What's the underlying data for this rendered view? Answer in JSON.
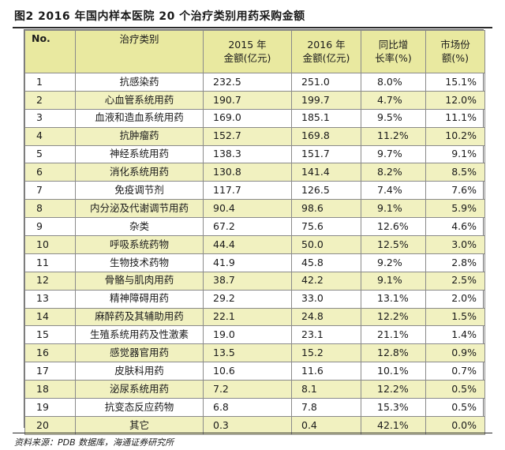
{
  "figure": {
    "title": "图2  2016 年国内样本医院 20 个治疗类别用药采购金额",
    "source": "资料来源：PDB 数据库，海通证券研究所"
  },
  "table": {
    "headers": {
      "no": "No.",
      "category": "治疗类别",
      "y2015_line1": "2015 年",
      "y2015_line2": "金额(亿元)",
      "y2016_line1": "2016 年",
      "y2016_line2": "金额(亿元)",
      "growth_line1": "同比增",
      "growth_line2": "长率(%)",
      "share_line1": "市场份",
      "share_line2": "额(%)"
    },
    "rows": [
      {
        "no": "1",
        "category": "抗感染药",
        "y2015": "232.5",
        "y2016": "251.0",
        "growth": "8.0%",
        "share": "15.1%"
      },
      {
        "no": "2",
        "category": "心血管系统用药",
        "y2015": "190.7",
        "y2016": "199.7",
        "growth": "4.7%",
        "share": "12.0%"
      },
      {
        "no": "3",
        "category": "血液和造血系统用药",
        "y2015": "169.0",
        "y2016": "185.1",
        "growth": "9.5%",
        "share": "11.1%"
      },
      {
        "no": "4",
        "category": "抗肿瘤药",
        "y2015": "152.7",
        "y2016": "169.8",
        "growth": "11.2%",
        "share": "10.2%"
      },
      {
        "no": "5",
        "category": "神经系统用药",
        "y2015": "138.3",
        "y2016": "151.7",
        "growth": "9.7%",
        "share": "9.1%"
      },
      {
        "no": "6",
        "category": "消化系统用药",
        "y2015": "130.8",
        "y2016": "141.4",
        "growth": "8.2%",
        "share": "8.5%"
      },
      {
        "no": "7",
        "category": "免疫调节剂",
        "y2015": "117.7",
        "y2016": "126.5",
        "growth": "7.4%",
        "share": "7.6%"
      },
      {
        "no": "8",
        "category": "内分泌及代谢调节用药",
        "y2015": "90.4",
        "y2016": "98.6",
        "growth": "9.1%",
        "share": "5.9%"
      },
      {
        "no": "9",
        "category": "杂类",
        "y2015": "67.2",
        "y2016": "75.6",
        "growth": "12.6%",
        "share": "4.6%"
      },
      {
        "no": "10",
        "category": "呼吸系统药物",
        "y2015": "44.4",
        "y2016": "50.0",
        "growth": "12.5%",
        "share": "3.0%"
      },
      {
        "no": "11",
        "category": "生物技术药物",
        "y2015": "41.9",
        "y2016": "45.8",
        "growth": "9.2%",
        "share": "2.8%"
      },
      {
        "no": "12",
        "category": "骨骼与肌肉用药",
        "y2015": "38.7",
        "y2016": "42.2",
        "growth": "9.1%",
        "share": "2.5%"
      },
      {
        "no": "13",
        "category": "精神障碍用药",
        "y2015": "29.2",
        "y2016": "33.0",
        "growth": "13.1%",
        "share": "2.0%"
      },
      {
        "no": "14",
        "category": "麻醉药及其辅助用药",
        "y2015": "22.1",
        "y2016": "24.8",
        "growth": "12.2%",
        "share": "1.5%"
      },
      {
        "no": "15",
        "category": "生殖系统用药及性激素",
        "y2015": "19.0",
        "y2016": "23.1",
        "growth": "21.1%",
        "share": "1.4%"
      },
      {
        "no": "16",
        "category": "感觉器官用药",
        "y2015": "13.5",
        "y2016": "15.2",
        "growth": "12.8%",
        "share": "0.9%"
      },
      {
        "no": "17",
        "category": "皮肤科用药",
        "y2015": "10.6",
        "y2016": "11.6",
        "growth": "10.1%",
        "share": "0.7%"
      },
      {
        "no": "18",
        "category": "泌尿系统用药",
        "y2015": "7.2",
        "y2016": "8.1",
        "growth": "12.2%",
        "share": "0.5%"
      },
      {
        "no": "19",
        "category": "抗变态反应药物",
        "y2015": "6.8",
        "y2016": "7.8",
        "growth": "15.3%",
        "share": "0.5%"
      },
      {
        "no": "20",
        "category": "其它",
        "y2015": "0.3",
        "y2016": "0.4",
        "growth": "42.1%",
        "share": "0.0%"
      }
    ]
  }
}
